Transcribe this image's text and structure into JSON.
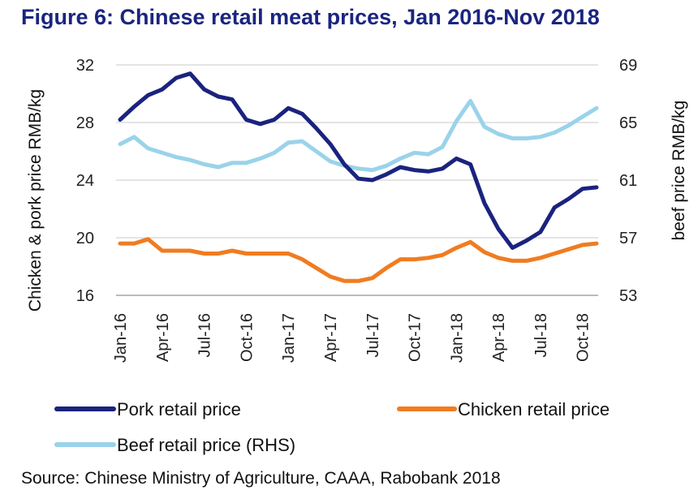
{
  "title": "Figure 6: Chinese retail meat prices, Jan 2016-Nov 2018",
  "source": "Source: Chinese Ministry of Agriculture, CAAA, Rabobank 2018",
  "chart_data": {
    "type": "line",
    "title": "Figure 6: Chinese retail meat prices, Jan 2016-Nov 2018",
    "x": [
      "Jan-16",
      "Feb-16",
      "Mar-16",
      "Apr-16",
      "May-16",
      "Jun-16",
      "Jul-16",
      "Aug-16",
      "Sep-16",
      "Oct-16",
      "Nov-16",
      "Dec-16",
      "Jan-17",
      "Feb-17",
      "Mar-17",
      "Apr-17",
      "May-17",
      "Jun-17",
      "Jul-17",
      "Aug-17",
      "Sep-17",
      "Oct-17",
      "Nov-17",
      "Dec-17",
      "Jan-18",
      "Feb-18",
      "Mar-18",
      "Apr-18",
      "May-18",
      "Jun-18",
      "Jul-18",
      "Aug-18",
      "Sep-18",
      "Oct-18",
      "Nov-18"
    ],
    "x_tick_labels": [
      "Jan-16",
      "Apr-16",
      "Jul-16",
      "Oct-16",
      "Jan-17",
      "Apr-17",
      "Jul-17",
      "Oct-17",
      "Jan-18",
      "Apr-18",
      "Jul-18",
      "Oct-18"
    ],
    "ylabel": "Chicken & pork price RMB/kg",
    "y2label": "beef price RMB/kg",
    "ylim": [
      16,
      32
    ],
    "y2lim": [
      53,
      69
    ],
    "yticks": [
      16,
      20,
      24,
      28,
      32
    ],
    "y2ticks": [
      53,
      57,
      61,
      65,
      69
    ],
    "grid": true,
    "legend_position": "bottom",
    "series": [
      {
        "name": "Pork retail price",
        "axis": "left",
        "color": "#1a237e",
        "values": [
          28.2,
          29.1,
          29.9,
          30.3,
          31.1,
          31.4,
          30.3,
          29.8,
          29.6,
          28.2,
          27.9,
          28.2,
          29.0,
          28.6,
          27.6,
          26.5,
          25.1,
          24.1,
          24.0,
          24.4,
          24.9,
          24.7,
          24.6,
          24.8,
          25.5,
          25.1,
          22.4,
          20.6,
          19.3,
          19.8,
          20.4,
          22.1,
          22.7,
          23.4,
          23.5
        ]
      },
      {
        "name": "Chicken retail price",
        "axis": "left",
        "color": "#f07c21",
        "values": [
          19.6,
          19.6,
          19.9,
          19.1,
          19.1,
          19.1,
          18.9,
          18.9,
          19.1,
          18.9,
          18.9,
          18.9,
          18.9,
          18.5,
          17.9,
          17.3,
          17.0,
          17.0,
          17.2,
          17.9,
          18.5,
          18.5,
          18.6,
          18.8,
          19.3,
          19.7,
          19.0,
          18.6,
          18.4,
          18.4,
          18.6,
          18.9,
          19.2,
          19.5,
          19.6
        ]
      },
      {
        "name": "Beef retail price (RHS)",
        "axis": "right",
        "color": "#9ad3ea",
        "values": [
          63.5,
          64.0,
          63.2,
          62.9,
          62.6,
          62.4,
          62.1,
          61.9,
          62.2,
          62.2,
          62.5,
          62.9,
          63.6,
          63.7,
          63.0,
          62.3,
          62.0,
          61.8,
          61.7,
          62.0,
          62.5,
          62.9,
          62.8,
          63.3,
          65.1,
          66.5,
          64.7,
          64.2,
          63.9,
          63.9,
          64.0,
          64.3,
          64.8,
          65.4,
          66.0
        ]
      }
    ]
  }
}
